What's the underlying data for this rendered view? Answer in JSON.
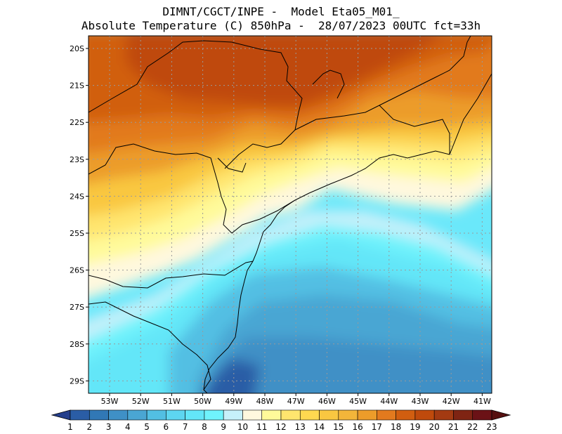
{
  "header": {
    "line1": "DIMNT/CGCT/INPE -  Model Eta05_M01_",
    "line2": "Absolute Temperature (C) 850hPa -  28/07/2023 00UTC fct=33h"
  },
  "map": {
    "lat_labels": [
      "20S",
      "21S",
      "22S",
      "23S",
      "24S",
      "25S",
      "26S",
      "27S",
      "28S",
      "29S"
    ],
    "lon_labels": [
      "53W",
      "52W",
      "51W",
      "50W",
      "49W",
      "48W",
      "47W",
      "46W",
      "45W",
      "44W",
      "43W",
      "42W",
      "41W"
    ]
  },
  "colorbar": {
    "labels": [
      "1",
      "2",
      "3",
      "4",
      "5",
      "6",
      "7",
      "8",
      "9",
      "10",
      "11",
      "12",
      "13",
      "14",
      "15",
      "16",
      "17",
      "18",
      "19",
      "20",
      "21",
      "22",
      "23"
    ],
    "colors": [
      "#243f8c",
      "#2a5da6",
      "#3178b6",
      "#3f90c6",
      "#4aa6d3",
      "#52bfe3",
      "#5dd6f0",
      "#63e6f8",
      "#6ff3fc",
      "#c6f0fa",
      "#fff8de",
      "#fffa9a",
      "#ffe56e",
      "#ffd850",
      "#f9c741",
      "#f3b53a",
      "#ec9c2a",
      "#e27a1e",
      "#d15e10",
      "#bf4a0c",
      "#a33a12",
      "#7f2413",
      "#6b1216",
      "#561010"
    ]
  }
}
